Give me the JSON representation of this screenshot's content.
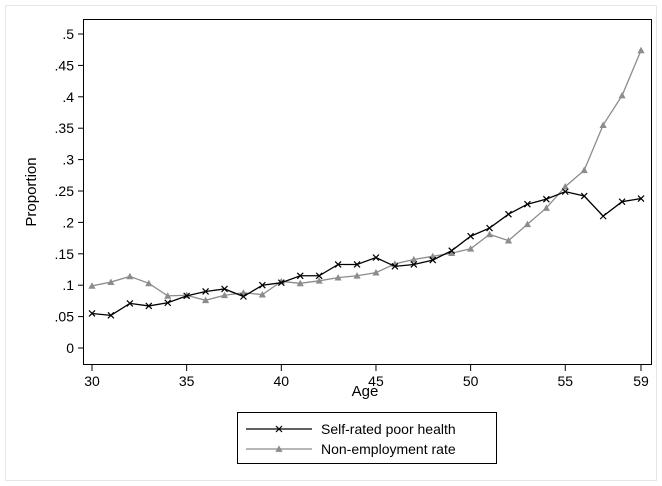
{
  "chart_data": {
    "type": "line",
    "xlabel": "Age",
    "ylabel": "Proportion",
    "xlim": [
      30,
      59
    ],
    "ylim": [
      0,
      0.5
    ],
    "x_ticks": [
      {
        "value": 30,
        "label": "30"
      },
      {
        "value": 35,
        "label": "35"
      },
      {
        "value": 40,
        "label": "40"
      },
      {
        "value": 45,
        "label": "45"
      },
      {
        "value": 50,
        "label": "50"
      },
      {
        "value": 55,
        "label": "55"
      },
      {
        "value": 59,
        "label": "59"
      }
    ],
    "y_ticks": [
      {
        "value": 0,
        "label": "0"
      },
      {
        "value": 0.05,
        "label": ".05"
      },
      {
        "value": 0.1,
        "label": ".1"
      },
      {
        "value": 0.15,
        "label": ".15"
      },
      {
        "value": 0.2,
        "label": ".2"
      },
      {
        "value": 0.25,
        "label": ".25"
      },
      {
        "value": 0.3,
        "label": ".3"
      },
      {
        "value": 0.35,
        "label": ".35"
      },
      {
        "value": 0.4,
        "label": ".4"
      },
      {
        "value": 0.45,
        "label": ".45"
      },
      {
        "value": 0.5,
        "label": ".5"
      }
    ],
    "grid": false,
    "legend_position": "bottom",
    "x": [
      30,
      31,
      32,
      33,
      34,
      35,
      36,
      37,
      38,
      39,
      40,
      41,
      42,
      43,
      44,
      45,
      46,
      47,
      48,
      49,
      50,
      51,
      52,
      53,
      54,
      55,
      56,
      57,
      58,
      59
    ],
    "series": [
      {
        "name": "Self-rated poor health",
        "color": "#000000",
        "marker": "x",
        "values": [
          0.055,
          0.052,
          0.071,
          0.067,
          0.072,
          0.083,
          0.09,
          0.094,
          0.082,
          0.1,
          0.104,
          0.115,
          0.115,
          0.133,
          0.133,
          0.144,
          0.13,
          0.133,
          0.14,
          0.155,
          0.178,
          0.191,
          0.213,
          0.229,
          0.237,
          0.249,
          0.242,
          0.21,
          0.233,
          0.238
        ]
      },
      {
        "name": "Non-employment rate",
        "color": "#8c8c8c",
        "marker": "triangle",
        "values": [
          0.099,
          0.105,
          0.114,
          0.103,
          0.083,
          0.084,
          0.076,
          0.084,
          0.088,
          0.085,
          0.106,
          0.103,
          0.107,
          0.112,
          0.115,
          0.12,
          0.134,
          0.141,
          0.146,
          0.151,
          0.158,
          0.181,
          0.171,
          0.197,
          0.223,
          0.257,
          0.283,
          0.355,
          0.402,
          0.474
        ]
      }
    ]
  }
}
